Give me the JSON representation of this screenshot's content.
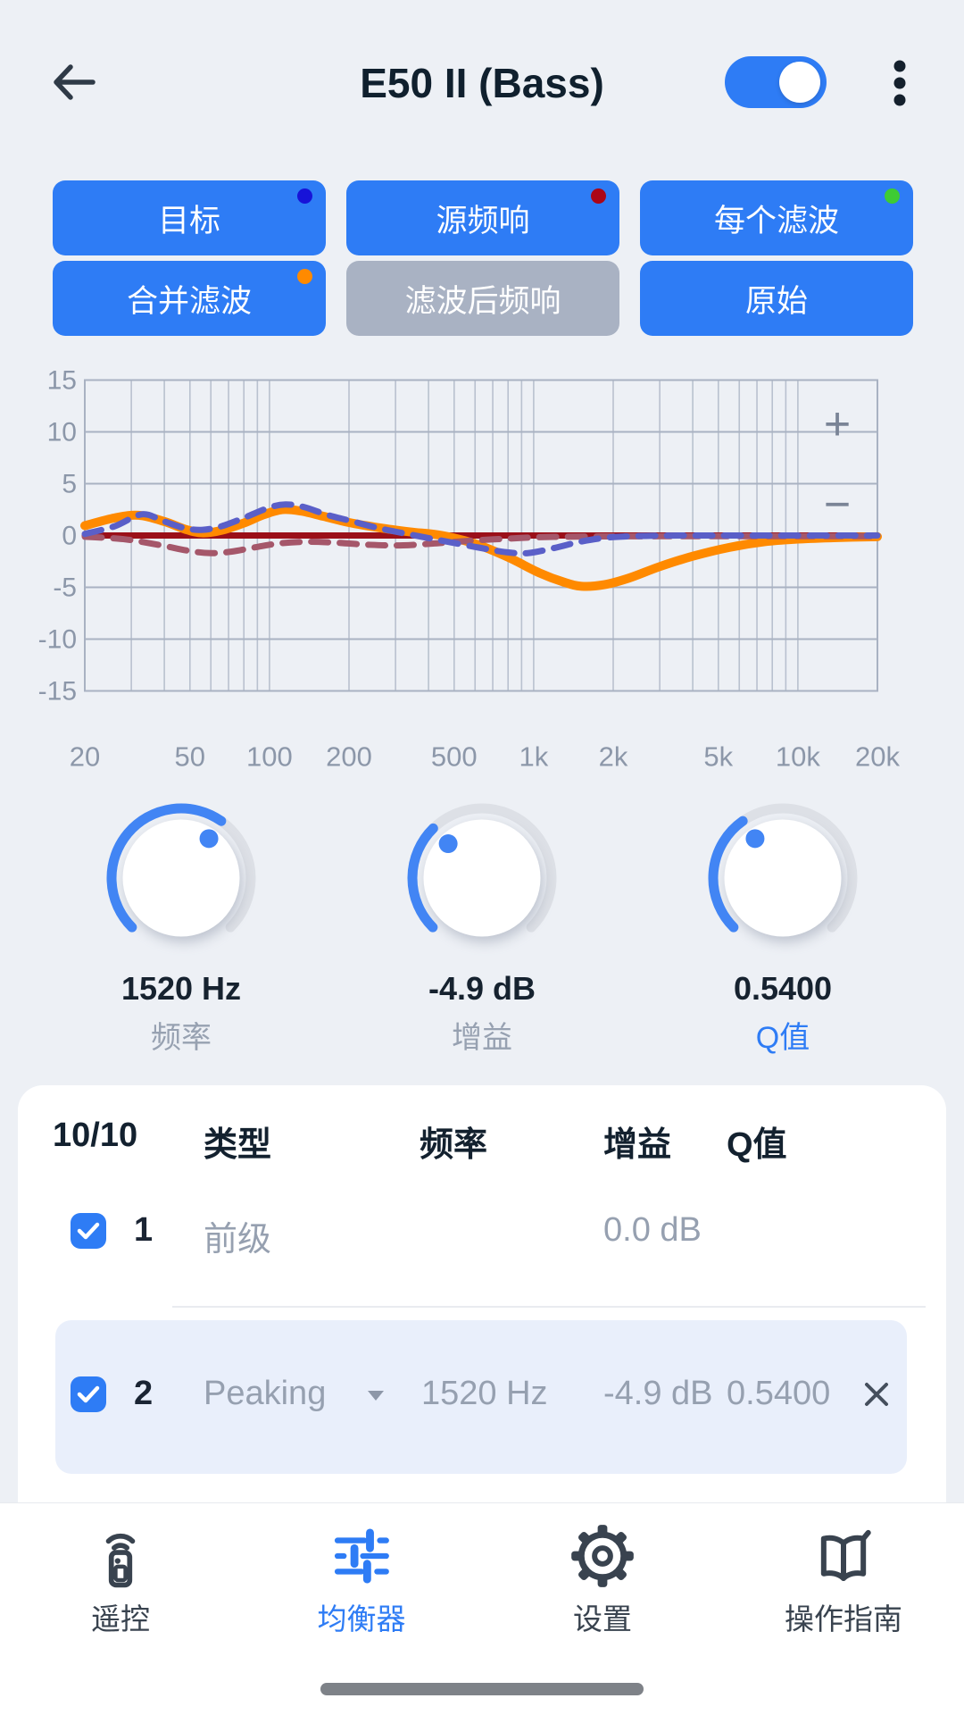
{
  "header": {
    "title": "E50 II (Bass)",
    "toggle_on": true,
    "accent_color": "#2E7CF5"
  },
  "legend_buttons": [
    {
      "label": "目标",
      "dot_color": "#1713D8",
      "style": "blue"
    },
    {
      "label": "源频响",
      "dot_color": "#AB0617",
      "style": "blue"
    },
    {
      "label": "每个滤波",
      "dot_color": "#3ECB33",
      "style": "blue"
    },
    {
      "label": "合并滤波",
      "dot_color": "#FF8A00",
      "style": "blue"
    },
    {
      "label": "滤波后频响",
      "dot_color": null,
      "style": "gray"
    },
    {
      "label": "原始",
      "dot_color": null,
      "style": "blue"
    }
  ],
  "chart_controls": {
    "zoom_in": "+",
    "zoom_out": "−"
  },
  "chart_data": {
    "type": "line",
    "x_scale": "log",
    "xlim": [
      20,
      20000
    ],
    "ylim": [
      -15,
      15
    ],
    "grid": true,
    "y_ticks": [
      15,
      10,
      5,
      0,
      -5,
      -10,
      -15
    ],
    "x_tick_labels": [
      [
        20,
        "20"
      ],
      [
        50,
        "50"
      ],
      [
        100,
        "100"
      ],
      [
        200,
        "200"
      ],
      [
        500,
        "500"
      ],
      [
        1000,
        "1k"
      ],
      [
        2000,
        "2k"
      ],
      [
        5000,
        "5k"
      ],
      [
        10000,
        "10k"
      ],
      [
        20000,
        "20k"
      ]
    ],
    "series": [
      {
        "name": "滤波后频响",
        "color": "#9B1019",
        "style": "solid",
        "width": 7,
        "points": [
          [
            20,
            0
          ],
          [
            20000,
            0
          ]
        ]
      },
      {
        "name": "合并滤波",
        "color": "#FF8A00",
        "style": "solid",
        "width": 10,
        "points": [
          [
            20,
            0.95
          ],
          [
            26,
            1.7
          ],
          [
            32,
            1.95
          ],
          [
            40,
            1.35
          ],
          [
            48,
            0.6
          ],
          [
            56,
            0.25
          ],
          [
            66,
            0.5
          ],
          [
            80,
            1.2
          ],
          [
            95,
            2.0
          ],
          [
            112,
            2.5
          ],
          [
            132,
            2.35
          ],
          [
            160,
            1.85
          ],
          [
            200,
            1.25
          ],
          [
            260,
            0.75
          ],
          [
            340,
            0.35
          ],
          [
            450,
            0.0
          ],
          [
            600,
            -0.8
          ],
          [
            800,
            -2.1
          ],
          [
            1050,
            -3.6
          ],
          [
            1300,
            -4.5
          ],
          [
            1520,
            -4.9
          ],
          [
            1850,
            -4.75
          ],
          [
            2300,
            -4.1
          ],
          [
            3000,
            -3.0
          ],
          [
            4000,
            -2.0
          ],
          [
            5500,
            -1.15
          ],
          [
            7500,
            -0.6
          ],
          [
            10000,
            -0.35
          ],
          [
            14000,
            -0.2
          ],
          [
            20000,
            -0.12
          ]
        ]
      },
      {
        "name": "源频响",
        "color": "#A5576A",
        "style": "dashed",
        "width": 7,
        "points": [
          [
            20,
            -0.12
          ],
          [
            28,
            -0.35
          ],
          [
            38,
            -0.9
          ],
          [
            50,
            -1.5
          ],
          [
            60,
            -1.7
          ],
          [
            72,
            -1.55
          ],
          [
            90,
            -1.1
          ],
          [
            110,
            -0.75
          ],
          [
            140,
            -0.6
          ],
          [
            180,
            -0.7
          ],
          [
            240,
            -0.9
          ],
          [
            320,
            -0.95
          ],
          [
            430,
            -0.75
          ],
          [
            580,
            -0.5
          ],
          [
            800,
            -0.3
          ],
          [
            1100,
            -0.15
          ],
          [
            1600,
            -0.1
          ],
          [
            3000,
            -0.07
          ],
          [
            20000,
            -0.07
          ]
        ]
      },
      {
        "name": "目标",
        "color": "#5A5FC8",
        "style": "dashed",
        "width": 7,
        "points": [
          [
            20,
            0.15
          ],
          [
            26,
            0.9
          ],
          [
            33,
            2.05
          ],
          [
            40,
            1.35
          ],
          [
            48,
            0.7
          ],
          [
            56,
            0.55
          ],
          [
            66,
            0.9
          ],
          [
            80,
            1.7
          ],
          [
            100,
            2.7
          ],
          [
            115,
            3.0
          ],
          [
            135,
            2.75
          ],
          [
            165,
            2.0
          ],
          [
            200,
            1.45
          ],
          [
            260,
            0.7
          ],
          [
            340,
            0.1
          ],
          [
            450,
            -0.5
          ],
          [
            600,
            -1.1
          ],
          [
            780,
            -1.6
          ],
          [
            950,
            -1.7
          ],
          [
            1200,
            -1.2
          ],
          [
            1500,
            -0.6
          ],
          [
            1900,
            -0.2
          ],
          [
            2500,
            -0.05
          ],
          [
            4000,
            0
          ],
          [
            20000,
            0
          ]
        ]
      }
    ]
  },
  "knobs": [
    {
      "value": "1520 Hz",
      "label": "频率",
      "progress": 0.63,
      "active": false
    },
    {
      "value": "-4.9 dB",
      "label": "增益",
      "progress": 0.335,
      "active": false
    },
    {
      "value": "0.5400",
      "label": "Q值",
      "progress": 0.37,
      "active": true
    }
  ],
  "filter_table": {
    "count": "10/10",
    "headers": [
      "类型",
      "频率",
      "增益",
      "Q值"
    ],
    "rows": [
      {
        "num": "1",
        "type": "前级",
        "freq": "",
        "gain": "0.0 dB",
        "q": "",
        "checked": true,
        "selected": false,
        "has_dropdown": false,
        "deletable": false
      },
      {
        "num": "2",
        "type": "Peaking",
        "freq": "1520 Hz",
        "gain": "-4.9 dB",
        "q": "0.5400",
        "checked": true,
        "selected": true,
        "has_dropdown": true,
        "deletable": true
      }
    ]
  },
  "nav": [
    {
      "label": "遥控",
      "icon": "remote-icon",
      "active": false
    },
    {
      "label": "均衡器",
      "icon": "equalizer-icon",
      "active": true
    },
    {
      "label": "设置",
      "icon": "gear-icon",
      "active": false
    },
    {
      "label": "操作指南",
      "icon": "book-icon",
      "active": false
    }
  ],
  "colors": {
    "background": "#EDF0F5",
    "accent_blue": "#2E7CF5",
    "knob_arc_blue": "#4285F4",
    "disabled_gray": "#A9B2C3",
    "dark_text": "#10202E",
    "muted_text": "#96A0B0",
    "grid_line": "#B9C1CF",
    "row_highlight": "#E9EFFB"
  }
}
